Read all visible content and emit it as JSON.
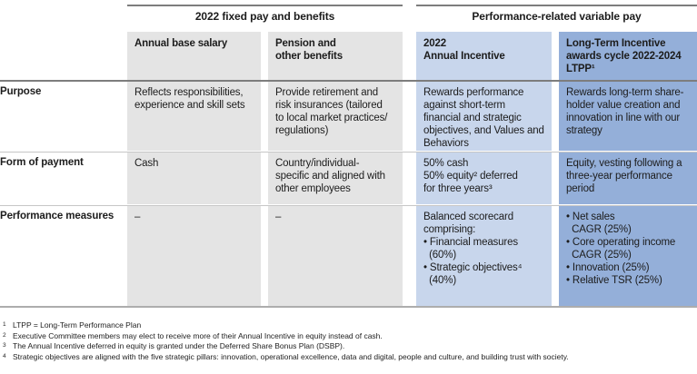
{
  "colors": {
    "grey_cell": "#e4e4e4",
    "light_blue": "#c8d6ec",
    "dark_blue": "#94afd9",
    "rule_dark": "#7d7d7d"
  },
  "table": {
    "group_headers": {
      "fixed": "2022 fixed pay and benefits",
      "variable": "Performance-related variable pay"
    },
    "column_headers": {
      "base_salary": "Annual base salary",
      "pension": "Pension and\nother benefits",
      "annual_incentive": "2022\nAnnual Incentive",
      "lti": "Long-Term Incentive\nawards cycle 2022-2024\nLTPP¹"
    },
    "rows": [
      {
        "label": "Purpose",
        "cells": [
          "Reflects responsibilities,\nexperience and skill sets",
          "Provide retirement and\nrisk insurances (tailored\nto local market practices/\nregulations)",
          "Rewards performance\nagainst short-term\nfinancial and strategic\nobjectives, and Values and\nBehaviors",
          "Rewards long-term share-\nholder value creation and\ninnovation in line with our\nstrategy"
        ]
      },
      {
        "label": "Form of payment",
        "cells": [
          "Cash",
          "Country/individual-\nspecific and aligned with\nother employees",
          "50% cash\n50% equity² deferred\nfor three years³",
          "Equity, vesting following a\nthree-year performance\nperiod"
        ]
      },
      {
        "label": "Performance measures",
        "cells": [
          "–",
          "–",
          "Balanced scorecard\ncomprising:\n• Financial measures\n  (60%)\n• Strategic objectives⁴\n  (40%)",
          "• Net sales\n  CAGR (25%)\n• Core operating income\n  CAGR (25%)\n• Innovation (25%)\n• Relative TSR (25%)"
        ]
      }
    ]
  },
  "footnotes": [
    {
      "num": "1",
      "text": "LTPP = Long-Term Performance Plan"
    },
    {
      "num": "2",
      "text": "Executive Committee members may elect to receive more of their Annual Incentive in equity instead of cash."
    },
    {
      "num": "3",
      "text": "The Annual Incentive deferred in equity is granted under the Deferred Share Bonus Plan (DSBP)."
    },
    {
      "num": "4",
      "text": "Strategic objectives are aligned with the five strategic pillars: innovation, operational excellence, data and digital, people and culture, and building trust with society."
    }
  ]
}
